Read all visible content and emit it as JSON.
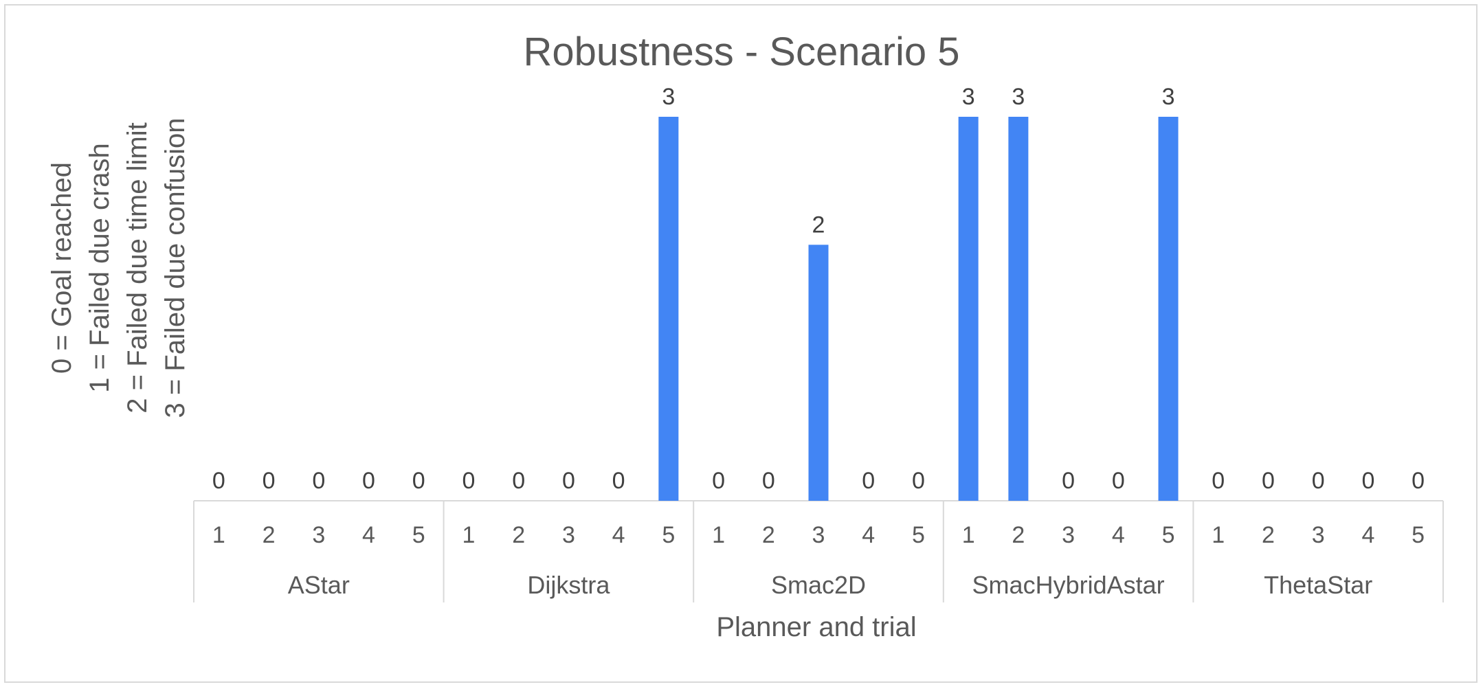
{
  "chart_data": {
    "type": "bar",
    "title": "Robustness - Scenario 5",
    "xlabel": "Planner and trial",
    "ylabel_lines": [
      "0 = Goal reached",
      "1 = Failed due crash",
      "2 = Failed due time limit",
      "3 = Failed due confusion"
    ],
    "ylim": [
      0,
      3
    ],
    "grid": false,
    "legend": "none",
    "bar_color": "#4285f4",
    "groups": [
      {
        "name": "AStar",
        "trials": [
          "1",
          "2",
          "3",
          "4",
          "5"
        ],
        "values": [
          0,
          0,
          0,
          0,
          0
        ]
      },
      {
        "name": "Dijkstra",
        "trials": [
          "1",
          "2",
          "3",
          "4",
          "5"
        ],
        "values": [
          0,
          0,
          0,
          0,
          3
        ]
      },
      {
        "name": "Smac2D",
        "trials": [
          "1",
          "2",
          "3",
          "4",
          "5"
        ],
        "values": [
          0,
          0,
          2,
          0,
          0
        ]
      },
      {
        "name": "SmacHybridAstar",
        "trials": [
          "1",
          "2",
          "3",
          "4",
          "5"
        ],
        "values": [
          3,
          3,
          0,
          0,
          3
        ]
      },
      {
        "name": "ThetaStar",
        "trials": [
          "1",
          "2",
          "3",
          "4",
          "5"
        ],
        "values": [
          0,
          0,
          0,
          0,
          0
        ]
      }
    ]
  }
}
